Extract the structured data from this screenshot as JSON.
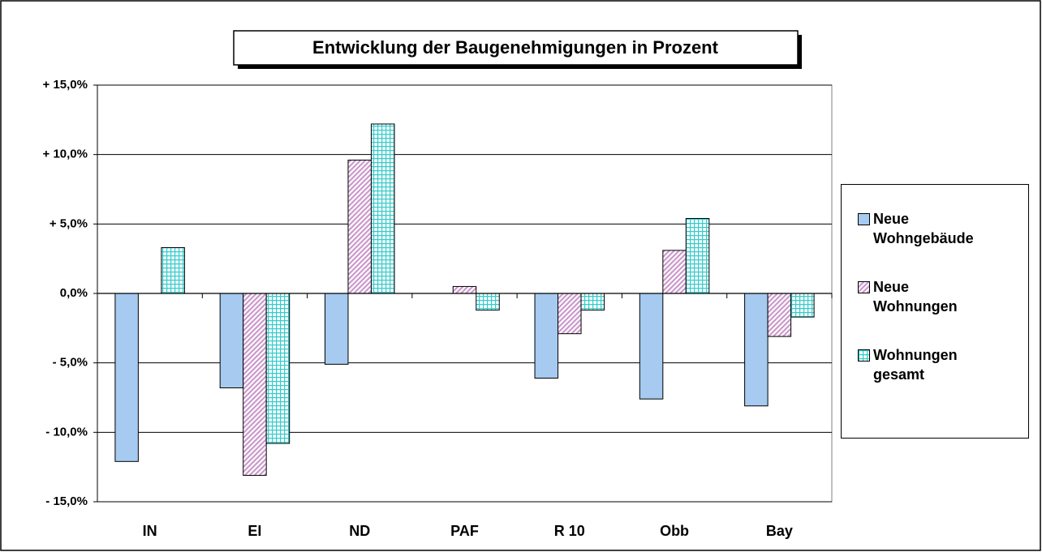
{
  "chart_data": {
    "type": "bar",
    "title": "Entwicklung der Baugenehmigungen in Prozent",
    "categories": [
      "IN",
      "EI",
      "ND",
      "PAF",
      "R 10",
      "Obb",
      "Bay"
    ],
    "series": [
      {
        "name": "Neue Wohngebäude",
        "color": "#a6caf0",
        "pattern": "solid",
        "values": [
          -12.1,
          -6.8,
          -5.1,
          0,
          -6.1,
          -7.6,
          -8.1
        ]
      },
      {
        "name": "Neue Wohnungen",
        "color": "#cc99cc",
        "pattern": "diagonal",
        "values": [
          0,
          -13.1,
          9.6,
          0.5,
          -2.9,
          3.1,
          -3.1
        ]
      },
      {
        "name": "Wohnungen gesamt",
        "color": "#33cccc",
        "pattern": "grid",
        "values": [
          3.3,
          -10.8,
          12.2,
          -1.2,
          -1.2,
          5.4,
          -1.7
        ]
      }
    ],
    "ylim": [
      -15,
      15
    ],
    "yticks": [
      {
        "value": 15,
        "label": "+ 15,0%"
      },
      {
        "value": 10,
        "label": "+ 10,0%"
      },
      {
        "value": 5,
        "label": "+ 5,0%"
      },
      {
        "value": 0,
        "label": "0,0%"
      },
      {
        "value": -5,
        "label": "- 5,0%"
      },
      {
        "value": -10,
        "label": "- 10,0%"
      },
      {
        "value": -15,
        "label": "- 15,0%"
      }
    ],
    "grid": true,
    "legend": "right"
  }
}
